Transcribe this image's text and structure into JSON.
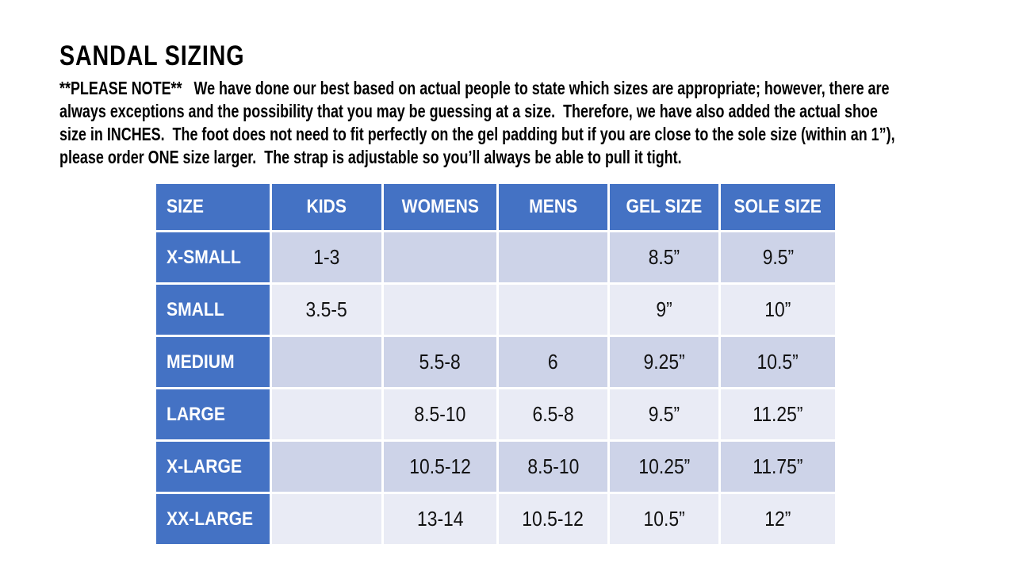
{
  "page": {
    "title": "SANDAL SIZING",
    "note_lines": [
      "**PLEASE NOTE**   We have done our best based on actual people to state which sizes are appropriate; however, there are",
      "always exceptions and the possibility that you may be guessing at a size.  Therefore, we have also added the actual shoe",
      "size in INCHES.  The foot does not need to fit perfectly on the gel padding but if you are close to the sole size (within an 1”),",
      "please order ONE size larger.  The strap is adjustable so you’ll always be able to pull it tight."
    ]
  },
  "table": {
    "columns": [
      "SIZE",
      "KIDS",
      "WOMENS",
      "MENS",
      "GEL SIZE",
      "SOLE SIZE"
    ],
    "rows": [
      {
        "size": "X-SMALL",
        "kids": "1-3",
        "womens": "",
        "mens": "",
        "gel": "8.5”",
        "sole": "9.5”"
      },
      {
        "size": "SMALL",
        "kids": "3.5-5",
        "womens": "",
        "mens": "",
        "gel": "9”",
        "sole": "10”"
      },
      {
        "size": "MEDIUM",
        "kids": "",
        "womens": "5.5-8",
        "mens": "6",
        "gel": "9.25”",
        "sole": "10.5”"
      },
      {
        "size": "LARGE",
        "kids": "",
        "womens": "8.5-10",
        "mens": "6.5-8",
        "gel": "9.5”",
        "sole": "11.25”"
      },
      {
        "size": "X-LARGE",
        "kids": "",
        "womens": "10.5-12",
        "mens": "8.5-10",
        "gel": "10.25”",
        "sole": "11.75”"
      },
      {
        "size": "XX-LARGE",
        "kids": "",
        "womens": "13-14",
        "mens": "10.5-12",
        "gel": "10.5”",
        "sole": "12”"
      }
    ]
  },
  "colors": {
    "header_blue": "#4472C4",
    "band_dark": "#CDD3E8",
    "band_light": "#E9EBF5",
    "text_dark": "#111111",
    "text_on_blue": "#FFFFFF"
  }
}
